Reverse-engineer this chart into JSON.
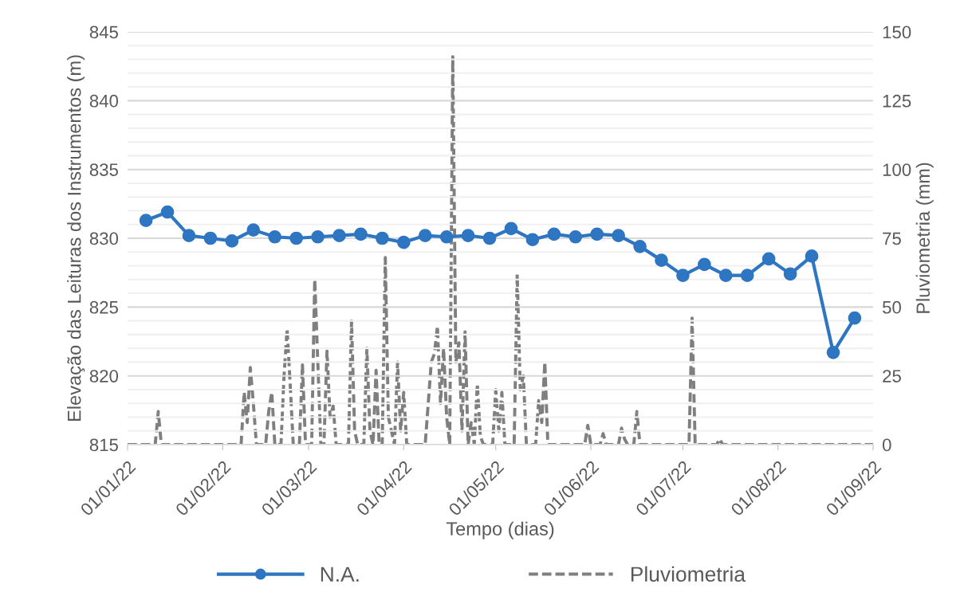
{
  "chart_data": {
    "type": "line",
    "xlabel": "Tempo (dias)",
    "ylabel": "Elevação das Leituras dos Instrumentos (m)",
    "y2label": "Pluviometria (mm)",
    "xlim": [
      "2022-01-01",
      "2022-09-01"
    ],
    "xticks": [
      {
        "value": "2022-01-01",
        "label": "01/01/22"
      },
      {
        "value": "2022-02-01",
        "label": "01/02/22"
      },
      {
        "value": "2022-03-01",
        "label": "01/03/22"
      },
      {
        "value": "2022-04-01",
        "label": "01/04/22"
      },
      {
        "value": "2022-05-01",
        "label": "01/05/22"
      },
      {
        "value": "2022-06-01",
        "label": "01/06/22"
      },
      {
        "value": "2022-07-01",
        "label": "01/07/22"
      },
      {
        "value": "2022-08-01",
        "label": "01/08/22"
      },
      {
        "value": "2022-09-01",
        "label": "01/09/22"
      }
    ],
    "ylim": [
      815,
      845
    ],
    "yticks": [
      815,
      {
        "value": 816,
        "label": null
      },
      {
        "value": 817,
        "label": null
      },
      {
        "value": 818,
        "label": null
      },
      {
        "value": 819,
        "label": null
      },
      820,
      {
        "value": 821,
        "label": null
      },
      {
        "value": 822,
        "label": null
      },
      {
        "value": 823,
        "label": null
      },
      {
        "value": 824,
        "label": null
      },
      825,
      {
        "value": 826,
        "label": null
      },
      {
        "value": 827,
        "label": null
      },
      {
        "value": 828,
        "label": null
      },
      {
        "value": 829,
        "label": null
      },
      830,
      {
        "value": 831,
        "label": null
      },
      {
        "value": 832,
        "label": null
      },
      {
        "value": 833,
        "label": null
      },
      {
        "value": 834,
        "label": null
      },
      835,
      {
        "value": 836,
        "label": null
      },
      {
        "value": 837,
        "label": null
      },
      {
        "value": 838,
        "label": null
      },
      {
        "value": 839,
        "label": null
      },
      840,
      {
        "value": 841,
        "label": null
      },
      {
        "value": 842,
        "label": null
      },
      {
        "value": 843,
        "label": null
      },
      {
        "value": 844,
        "label": null
      },
      845
    ],
    "y2lim": [
      0,
      150
    ],
    "y2ticks": [
      0,
      25,
      50,
      75,
      100,
      125,
      150
    ],
    "grid": "y",
    "legend": "bottom",
    "series": [
      {
        "name": "N.A.",
        "color": "#2e75c2",
        "marker": "circle",
        "line_style": "solid",
        "x": [
          "2022-01-07",
          "2022-01-14",
          "2022-01-21",
          "2022-01-28",
          "2022-02-04",
          "2022-02-11",
          "2022-02-18",
          "2022-02-25",
          "2022-03-04",
          "2022-03-11",
          "2022-03-18",
          "2022-03-25",
          "2022-04-01",
          "2022-04-08",
          "2022-04-15",
          "2022-04-22",
          "2022-04-29",
          "2022-05-06",
          "2022-05-13",
          "2022-05-20",
          "2022-05-27",
          "2022-06-03",
          "2022-06-10",
          "2022-06-17",
          "2022-06-24",
          "2022-07-01",
          "2022-07-08",
          "2022-07-15",
          "2022-07-22",
          "2022-07-29",
          "2022-08-05",
          "2022-08-12",
          "2022-08-19",
          "2022-08-26"
        ],
        "values": [
          831.3,
          831.9,
          830.2,
          830.0,
          829.8,
          830.6,
          830.1,
          830.0,
          830.1,
          830.2,
          830.3,
          830.0,
          829.7,
          830.2,
          830.1,
          830.2,
          830.0,
          830.7,
          829.9,
          830.3,
          830.1,
          830.3,
          830.2,
          829.4,
          828.4,
          827.3,
          828.1,
          827.3,
          827.3,
          828.5,
          827.4,
          828.7,
          821.7,
          824.2
        ]
      },
      {
        "name": "Pluviometria",
        "color": "#7f7f7f",
        "axis": "y2",
        "marker": "none",
        "line_style": "dashed",
        "x": [
          "2022-01-01",
          "2022-01-10",
          "2022-01-11",
          "2022-01-12",
          "2022-02-07",
          "2022-02-08",
          "2022-02-09",
          "2022-02-10",
          "2022-02-11",
          "2022-02-12",
          "2022-02-15",
          "2022-02-16",
          "2022-02-17",
          "2022-02-18",
          "2022-02-20",
          "2022-02-21",
          "2022-02-22",
          "2022-02-23",
          "2022-02-24",
          "2022-02-26",
          "2022-02-27",
          "2022-02-28",
          "2022-03-02",
          "2022-03-03",
          "2022-03-04",
          "2022-03-05",
          "2022-03-06",
          "2022-03-07",
          "2022-03-08",
          "2022-03-09",
          "2022-03-10",
          "2022-03-14",
          "2022-03-15",
          "2022-03-16",
          "2022-03-17",
          "2022-03-19",
          "2022-03-20",
          "2022-03-21",
          "2022-03-22",
          "2022-03-23",
          "2022-03-24",
          "2022-03-25",
          "2022-03-26",
          "2022-03-27",
          "2022-03-29",
          "2022-03-30",
          "2022-03-31",
          "2022-04-01",
          "2022-04-02",
          "2022-04-08",
          "2022-04-10",
          "2022-04-11",
          "2022-04-12",
          "2022-04-13",
          "2022-04-14",
          "2022-04-15",
          "2022-04-16",
          "2022-04-17",
          "2022-04-18",
          "2022-04-19",
          "2022-04-20",
          "2022-04-21",
          "2022-04-22",
          "2022-04-23",
          "2022-04-24",
          "2022-04-25",
          "2022-04-26",
          "2022-04-27",
          "2022-04-28",
          "2022-04-30",
          "2022-05-01",
          "2022-05-02",
          "2022-05-03",
          "2022-05-04",
          "2022-05-07",
          "2022-05-08",
          "2022-05-09",
          "2022-05-10",
          "2022-05-11",
          "2022-05-14",
          "2022-05-15",
          "2022-05-16",
          "2022-05-17",
          "2022-05-18",
          "2022-05-30",
          "2022-05-31",
          "2022-06-01",
          "2022-06-04",
          "2022-06-05",
          "2022-06-06",
          "2022-06-10",
          "2022-06-11",
          "2022-06-12",
          "2022-06-13",
          "2022-06-15",
          "2022-06-16",
          "2022-06-17",
          "2022-07-03",
          "2022-07-04",
          "2022-07-05",
          "2022-07-12",
          "2022-07-13",
          "2022-07-14",
          "2022-09-01"
        ],
        "values": [
          0,
          0,
          12,
          0,
          0,
          19,
          8,
          28,
          15,
          0,
          0,
          12,
          19,
          0,
          0,
          25,
          42,
          22,
          0,
          0,
          29,
          0,
          0,
          60,
          30,
          0,
          0,
          34,
          10,
          14,
          0,
          0,
          45,
          5,
          0,
          0,
          35,
          5,
          0,
          27,
          0,
          0,
          68,
          10,
          0,
          30,
          5,
          19,
          0,
          0,
          30,
          33,
          43,
          15,
          35,
          10,
          0,
          141,
          30,
          37,
          5,
          41,
          0,
          8,
          0,
          22,
          3,
          0,
          0,
          0,
          20,
          5,
          19,
          0,
          0,
          62,
          20,
          25,
          0,
          0,
          16,
          8,
          30,
          0,
          0,
          7,
          0,
          0,
          4,
          0,
          0,
          6,
          2,
          0,
          0,
          12,
          0,
          0,
          46,
          0,
          0,
          2,
          0,
          0
        ]
      }
    ]
  }
}
